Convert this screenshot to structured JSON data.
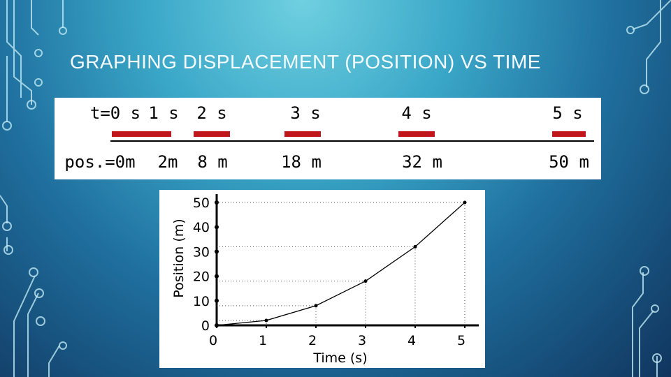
{
  "header": {
    "title": "GRAPHING DISPLACEMENT (POSITION) VS TIME"
  },
  "timeline": {
    "times": [
      "t=0 s",
      "1 s",
      "2 s",
      "3 s",
      "4 s",
      "5 s"
    ],
    "positions": [
      "pos.=0m",
      "2m",
      "8 m",
      "18 m",
      "32 m",
      "50 m"
    ]
  },
  "chart_data": {
    "type": "line",
    "x_label": "Time (s)",
    "y_label": "Position (m)",
    "x": [
      0,
      1,
      2,
      3,
      4,
      5
    ],
    "values": [
      0,
      2,
      8,
      18,
      32,
      50
    ],
    "color": "#000000",
    "xlim": [
      0,
      5
    ],
    "ylim": [
      0,
      50
    ],
    "xticks": [
      0,
      1,
      2,
      3,
      4,
      5
    ],
    "yticks": [
      0,
      10,
      20,
      30,
      40,
      50
    ],
    "guides": true
  }
}
